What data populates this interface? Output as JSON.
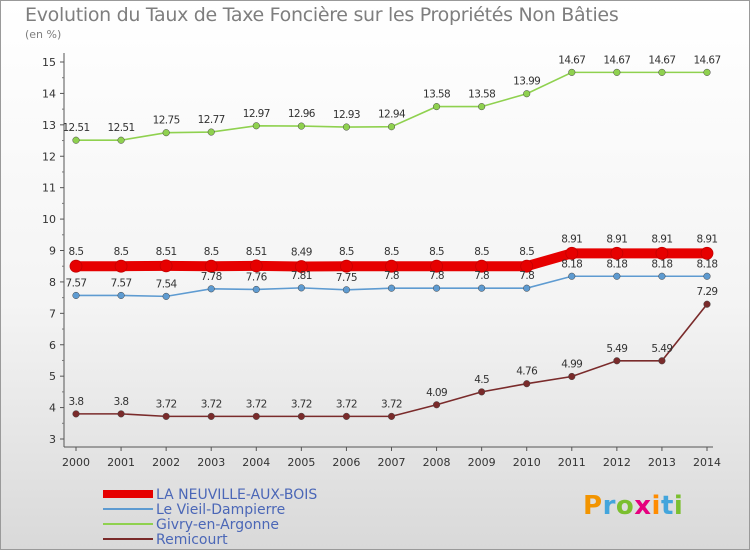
{
  "title": "Evolution du Taux de Taxe Foncière sur les Propriétés Non Bâties",
  "unit_label": "(en %)",
  "logo": {
    "text": "Proxiti",
    "colors": [
      "#f29400",
      "#43a5dc",
      "#7bbf2f",
      "#e6007e",
      "#ff8c00",
      "#43a5dc",
      "#7bbf2f"
    ]
  },
  "chart_data": {
    "type": "line",
    "title": "Evolution du Taux de Taxe Foncière sur les Propriétés Non Bâties",
    "ylabel": "(en %)",
    "xlabel": "",
    "ylim": [
      3,
      15
    ],
    "yticks": [
      3,
      4,
      5,
      6,
      7,
      8,
      9,
      10,
      11,
      12,
      13,
      14,
      15
    ],
    "x": [
      "2000",
      "2001",
      "2002",
      "2003",
      "2004",
      "2005",
      "2006",
      "2007",
      "2008",
      "2009",
      "2010",
      "2011",
      "2012",
      "2013",
      "2014"
    ],
    "series": [
      {
        "name": "LA NEUVILLE-AUX-BOIS",
        "color": "#e60000",
        "emphasis": true,
        "values": [
          8.5,
          8.5,
          8.51,
          8.5,
          8.51,
          8.49,
          8.5,
          8.5,
          8.5,
          8.5,
          8.5,
          8.91,
          8.91,
          8.91,
          8.91
        ],
        "labels": [
          "8.5",
          "8.5",
          "8.51",
          "8.5",
          "8.51",
          "8.49",
          "8.5",
          "8.5",
          "8.5",
          "8.5",
          "8.5",
          "8.91",
          "8.91",
          "8.91",
          "8.91"
        ]
      },
      {
        "name": "Le Vieil-Dampierre",
        "color": "#5e9bd1",
        "emphasis": false,
        "values": [
          7.57,
          7.57,
          7.54,
          7.78,
          7.76,
          7.81,
          7.75,
          7.8,
          7.8,
          7.8,
          7.8,
          8.18,
          8.18,
          8.18,
          8.18
        ],
        "labels": [
          "7.57",
          "7.57",
          "7.54",
          "7.78",
          "7.76",
          "7.81",
          "7.75",
          "7.8",
          "7.8",
          "7.8",
          "7.8",
          "8.18",
          "8.18",
          "8.18",
          "8.18"
        ]
      },
      {
        "name": "Givry-en-Argonne",
        "color": "#8fd14f",
        "emphasis": false,
        "values": [
          12.51,
          12.51,
          12.75,
          12.77,
          12.97,
          12.96,
          12.93,
          12.94,
          13.58,
          13.58,
          13.99,
          14.67,
          14.67,
          14.67,
          14.67
        ],
        "labels": [
          "12.51",
          "12.51",
          "12.75",
          "12.77",
          "12.97",
          "12.96",
          "12.93",
          "12.94",
          "13.58",
          "13.58",
          "13.99",
          "14.67",
          "14.67",
          "14.67",
          "14.67"
        ]
      },
      {
        "name": "Remicourt",
        "color": "#7a2b2b",
        "emphasis": false,
        "values": [
          3.8,
          3.8,
          3.72,
          3.72,
          3.72,
          3.72,
          3.72,
          3.72,
          4.09,
          4.5,
          4.76,
          4.99,
          5.49,
          5.49,
          7.29
        ],
        "labels": [
          "3.8",
          "3.8",
          "3.72",
          "3.72",
          "3.72",
          "3.72",
          "3.72",
          "3.72",
          "4.09",
          "4.5",
          "4.76",
          "4.99",
          "5.49",
          "5.49",
          "7.29"
        ]
      }
    ],
    "legend": [
      "LA NEUVILLE-AUX-BOIS",
      "Le Vieil-Dampierre",
      "Givry-en-Argonne",
      "Remicourt"
    ],
    "legend_position": "bottom-left",
    "grid": false
  }
}
